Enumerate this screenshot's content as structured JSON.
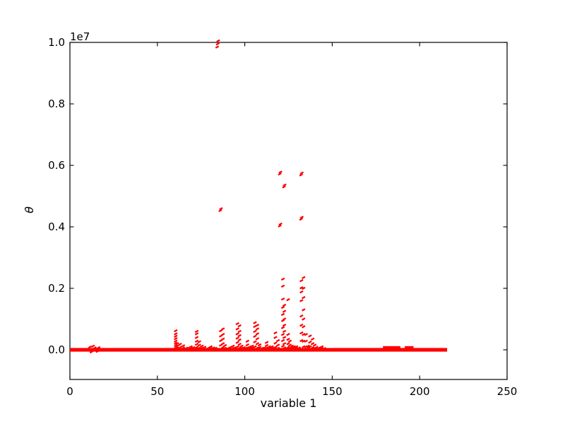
{
  "figure": {
    "background": "#ffffff",
    "plot_background": "#ffffff",
    "frame_color": "#000000",
    "text_color": "#000000",
    "marker_color": "#ff0000"
  },
  "chart_data": {
    "type": "scatter",
    "title": "",
    "xlabel": "variable 1",
    "ylabel": "θ",
    "y_offset_label": "1e7",
    "xlim": [
      0,
      250
    ],
    "ylim": [
      -1000000,
      10000000
    ],
    "x_ticks": [
      0,
      50,
      100,
      150,
      200,
      250
    ],
    "x_tick_labels": [
      "0",
      "50",
      "100",
      "150",
      "200",
      "250"
    ],
    "y_ticks": [
      0,
      2000000,
      4000000,
      6000000,
      8000000,
      10000000
    ],
    "y_tick_labels": [
      "0.0",
      "0.2",
      "0.4",
      "0.6",
      "0.8",
      "1.0"
    ],
    "grid": false,
    "legend": null,
    "marker": "red-pixel-dash",
    "baseline": {
      "y": 0,
      "x_start": 0,
      "x_end": 215.7
    },
    "baseline_thick_segments": [
      [
        179,
        189
      ],
      [
        191.5,
        196.5
      ]
    ],
    "clusters": [
      {
        "x": 11.5,
        "ys": [
          90000.0
        ]
      },
      {
        "x": 12.3,
        "ys": [
          -70000.0
        ]
      },
      {
        "x": 13.2,
        "ys": [
          120000.0
        ]
      },
      {
        "x": 14.2,
        "ys": [
          60000.0
        ]
      },
      {
        "x": 15.8,
        "ys": [
          -50000.0
        ]
      },
      {
        "x": 16.4,
        "ys": [
          70000.0
        ]
      },
      {
        "x": 60.5,
        "ys": [
          70000.0,
          140000.0,
          210000.0,
          280000.0,
          360000.0,
          440000.0,
          520000.0,
          620000.0
        ]
      },
      {
        "x": 61.4,
        "ys": [
          50000.0,
          120000.0,
          200000.0
        ]
      },
      {
        "x": 63.0,
        "ys": [
          80000.0,
          180000.0
        ]
      },
      {
        "x": 64.8,
        "ys": [
          60000.0,
          130000.0
        ]
      },
      {
        "x": 66.5,
        "ys": [
          50000.0
        ]
      },
      {
        "x": 67.8,
        "ys": [
          60000.0
        ]
      },
      {
        "x": 69.2,
        "ys": [
          50000.0,
          100000.0
        ]
      },
      {
        "x": 70.6,
        "ys": [
          70000.0
        ]
      },
      {
        "x": 72.5,
        "ys": [
          80000.0,
          180000.0,
          280000.0,
          400000.0,
          520000.0,
          600000.0
        ]
      },
      {
        "x": 74.0,
        "ys": [
          60000.0,
          150000.0,
          260000.0
        ]
      },
      {
        "x": 75.5,
        "ys": [
          50000.0,
          120000.0
        ]
      },
      {
        "x": 77.0,
        "ys": [
          80000.0
        ]
      },
      {
        "x": 79.0,
        "ys": [
          50000.0
        ]
      },
      {
        "x": 80.5,
        "ys": [
          50000.0,
          100000.0
        ]
      },
      {
        "x": 82.0,
        "ys": [
          60000.0
        ]
      },
      {
        "x": 83.2,
        "ys": [
          50000.0
        ]
      },
      {
        "x": 84.2,
        "ys": [
          9850000.0
        ]
      },
      {
        "x": 84.5,
        "ys": [
          9950000.0
        ]
      },
      {
        "x": 84.8,
        "ys": [
          10050000.0
        ]
      },
      {
        "x": 86.0,
        "ys": [
          4530000.0
        ]
      },
      {
        "x": 86.4,
        "ys": [
          4590000.0
        ]
      },
      {
        "x": 86.3,
        "ys": [
          150000.0,
          300000.0,
          450000.0,
          620000.0
        ]
      },
      {
        "x": 87.5,
        "ys": [
          80000.0,
          200000.0,
          350000.0,
          500000.0,
          680000.0
        ]
      },
      {
        "x": 88.7,
        "ys": [
          50000.0,
          140000.0
        ]
      },
      {
        "x": 90.5,
        "ys": [
          50000.0
        ]
      },
      {
        "x": 91.8,
        "ys": [
          80000.0
        ]
      },
      {
        "x": 93.2,
        "ys": [
          50000.0,
          120000.0
        ]
      },
      {
        "x": 94.3,
        "ys": [
          60000.0
        ]
      },
      {
        "x": 95.8,
        "ys": [
          100000.0,
          240000.0,
          380000.0,
          520000.0,
          680000.0,
          850000.0
        ]
      },
      {
        "x": 97.0,
        "ys": [
          60000.0,
          180000.0,
          320000.0,
          460000.0,
          600000.0,
          780000.0
        ]
      },
      {
        "x": 98.2,
        "ys": [
          50000.0,
          120000.0
        ]
      },
      {
        "x": 99.5,
        "ys": [
          70000.0
        ]
      },
      {
        "x": 100.6,
        "ys": [
          50000.0
        ]
      },
      {
        "x": 101.5,
        "ys": [
          60000.0,
          160000.0,
          280000.0
        ]
      },
      {
        "x": 103.0,
        "ys": [
          50000.0,
          100000.0
        ]
      },
      {
        "x": 104.2,
        "ys": [
          60000.0,
          120000.0
        ]
      },
      {
        "x": 105.8,
        "ys": [
          100000.0,
          260000.0,
          440000.0,
          600000.0,
          760000.0,
          880000.0
        ]
      },
      {
        "x": 107.2,
        "ys": [
          60000.0,
          200000.0,
          360000.0,
          520000.0,
          680000.0,
          800000.0
        ]
      },
      {
        "x": 108.5,
        "ys": [
          80000.0,
          160000.0
        ]
      },
      {
        "x": 110.0,
        "ys": [
          50000.0
        ]
      },
      {
        "x": 111.2,
        "ys": [
          60000.0
        ]
      },
      {
        "x": 112.5,
        "ys": [
          60000.0,
          140000.0,
          240000.0
        ]
      },
      {
        "x": 114.0,
        "ys": [
          50000.0,
          100000.0
        ]
      },
      {
        "x": 115.5,
        "ys": [
          50000.0,
          100000.0
        ]
      },
      {
        "x": 116.6,
        "ys": [
          60000.0
        ]
      },
      {
        "x": 117.5,
        "ys": [
          80000.0,
          220000.0,
          400000.0,
          550000.0
        ]
      },
      {
        "x": 119.0,
        "ys": [
          50000.0,
          150000.0,
          300000.0
        ]
      },
      {
        "x": 120.0,
        "ys": [
          4030000.0,
          5720000.0
        ]
      },
      {
        "x": 120.4,
        "ys": [
          4090000.0,
          5780000.0
        ]
      },
      {
        "x": 121.8,
        "ys": [
          120000.0,
          300000.0,
          500000.0,
          720000.0,
          950000.0,
          1150000.0,
          1380000.0,
          1650000.0,
          2070000.0,
          2300000.0
        ]
      },
      {
        "x": 122.4,
        "ys": [
          5300000.0
        ]
      },
      {
        "x": 122.8,
        "ys": [
          5360000.0
        ]
      },
      {
        "x": 122.6,
        "ys": [
          60000.0,
          200000.0,
          400000.0,
          600000.0,
          800000.0,
          1000000.0,
          1250000.0,
          1450000.0
        ]
      },
      {
        "x": 124.8,
        "ys": [
          80000.0,
          200000.0,
          340000.0,
          500000.0,
          1630000.0
        ]
      },
      {
        "x": 125.8,
        "ys": [
          50000.0,
          150000.0,
          280000.0
        ]
      },
      {
        "x": 127.0,
        "ys": [
          60000.0,
          120000.0
        ]
      },
      {
        "x": 128.2,
        "ys": [
          50000.0,
          100000.0
        ]
      },
      {
        "x": 129.5,
        "ys": [
          50000.0,
          100000.0
        ]
      },
      {
        "x": 131.0,
        "ys": [
          60000.0
        ]
      },
      {
        "x": 132.2,
        "ys": [
          4250000.0,
          5690000.0
        ]
      },
      {
        "x": 132.6,
        "ys": [
          4310000.0,
          5750000.0
        ]
      },
      {
        "x": 132.4,
        "ys": [
          300000.0,
          550000.0,
          800000.0,
          1100000.0,
          1600000.0,
          1880000.0,
          2020000.0,
          2250000.0
        ]
      },
      {
        "x": 133.6,
        "ys": [
          100000.0,
          280000.0,
          500000.0,
          750000.0,
          1000000.0,
          1300000.0,
          1700000.0,
          2000000.0,
          2350000.0
        ]
      },
      {
        "x": 135.0,
        "ys": [
          100000.0,
          280000.0,
          500000.0
        ]
      },
      {
        "x": 136.2,
        "ys": [
          60000.0,
          120000.0
        ]
      },
      {
        "x": 137.3,
        "ys": [
          100000.0,
          250000.0,
          450000.0
        ]
      },
      {
        "x": 138.8,
        "ys": [
          70000.0,
          200000.0,
          350000.0
        ]
      },
      {
        "x": 140.0,
        "ys": [
          50000.0,
          150000.0
        ]
      },
      {
        "x": 141.0,
        "ys": [
          80000.0
        ]
      },
      {
        "x": 142.5,
        "ys": [
          60000.0
        ]
      },
      {
        "x": 144.0,
        "ys": [
          50000.0,
          100000.0
        ]
      },
      {
        "x": 145.5,
        "ys": [
          40000.0
        ]
      }
    ]
  }
}
